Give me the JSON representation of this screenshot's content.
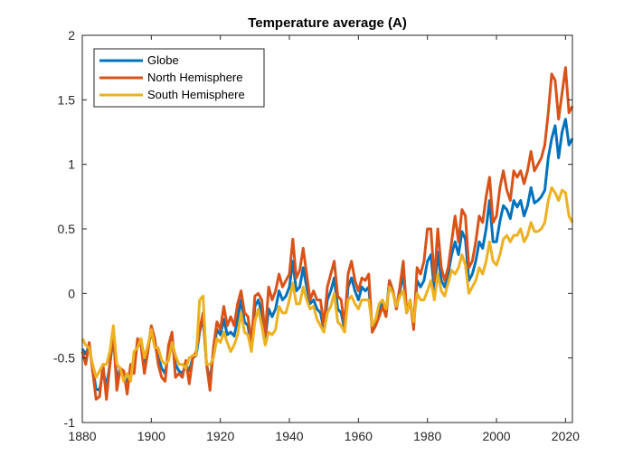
{
  "chart_data": {
    "type": "line",
    "title": "Temperature average (A)",
    "xlabel": "",
    "ylabel": "",
    "xlim": [
      1880,
      2022
    ],
    "ylim": [
      -1,
      2
    ],
    "xticks": [
      1880,
      1900,
      1920,
      1940,
      1960,
      1980,
      2000,
      2020
    ],
    "yticks": [
      -1,
      -0.5,
      0,
      0.5,
      1,
      1.5,
      2
    ],
    "ytick_labels": [
      "-1",
      "-0.5",
      "0",
      "0.5",
      "1",
      "1.5",
      "2"
    ],
    "legend_position": "top-left",
    "colors": {
      "globe": "#0072BD",
      "north": "#D95319",
      "south": "#EDB120",
      "axis": "#262626"
    },
    "x": [
      1880,
      1881,
      1882,
      1883,
      1884,
      1885,
      1886,
      1887,
      1888,
      1889,
      1890,
      1891,
      1892,
      1893,
      1894,
      1895,
      1896,
      1897,
      1898,
      1899,
      1900,
      1901,
      1902,
      1903,
      1904,
      1905,
      1906,
      1907,
      1908,
      1909,
      1910,
      1911,
      1912,
      1913,
      1914,
      1915,
      1916,
      1917,
      1918,
      1919,
      1920,
      1921,
      1922,
      1923,
      1924,
      1925,
      1926,
      1927,
      1928,
      1929,
      1930,
      1931,
      1932,
      1933,
      1934,
      1935,
      1936,
      1937,
      1938,
      1939,
      1940,
      1941,
      1942,
      1943,
      1944,
      1945,
      1946,
      1947,
      1948,
      1949,
      1950,
      1951,
      1952,
      1953,
      1954,
      1955,
      1956,
      1957,
      1958,
      1959,
      1960,
      1961,
      1962,
      1963,
      1964,
      1965,
      1966,
      1967,
      1968,
      1969,
      1970,
      1971,
      1972,
      1973,
      1974,
      1975,
      1976,
      1977,
      1978,
      1979,
      1980,
      1981,
      1982,
      1983,
      1984,
      1985,
      1986,
      1987,
      1988,
      1989,
      1990,
      1991,
      1992,
      1993,
      1994,
      1995,
      1996,
      1997,
      1998,
      1999,
      2000,
      2001,
      2002,
      2003,
      2004,
      2005,
      2006,
      2007,
      2008,
      2009,
      2010,
      2011,
      2012,
      2013,
      2014,
      2015,
      2016,
      2017,
      2018,
      2019,
      2020,
      2021,
      2022
    ],
    "series": [
      {
        "name": "Globe",
        "key": "globe",
        "values": [
          -0.43,
          -0.47,
          -0.4,
          -0.58,
          -0.74,
          -0.75,
          -0.6,
          -0.72,
          -0.55,
          -0.33,
          -0.67,
          -0.58,
          -0.64,
          -0.68,
          -0.61,
          -0.54,
          -0.4,
          -0.38,
          -0.57,
          -0.42,
          -0.3,
          -0.4,
          -0.49,
          -0.58,
          -0.62,
          -0.46,
          -0.35,
          -0.55,
          -0.6,
          -0.62,
          -0.55,
          -0.6,
          -0.5,
          -0.48,
          -0.3,
          -0.18,
          -0.55,
          -0.68,
          -0.45,
          -0.28,
          -0.32,
          -0.2,
          -0.32,
          -0.3,
          -0.33,
          -0.2,
          -0.05,
          -0.22,
          -0.25,
          -0.42,
          -0.1,
          -0.05,
          -0.15,
          -0.35,
          -0.12,
          -0.18,
          -0.12,
          0.02,
          -0.05,
          -0.02,
          0.05,
          0.25,
          0.02,
          0.05,
          0.2,
          0.05,
          -0.08,
          -0.05,
          -0.12,
          -0.15,
          -0.28,
          -0.05,
          0.02,
          0.12,
          -0.12,
          -0.15,
          -0.28,
          0.05,
          0.12,
          0.02,
          -0.05,
          0.05,
          0.02,
          0.05,
          -0.28,
          -0.22,
          -0.12,
          -0.08,
          -0.15,
          0.1,
          0.02,
          -0.12,
          0.02,
          0.15,
          -0.15,
          -0.05,
          -0.25,
          0.1,
          0.05,
          0.1,
          0.25,
          0.3,
          0.02,
          0.32,
          0.1,
          0.05,
          0.15,
          0.3,
          0.4,
          0.3,
          0.48,
          0.42,
          0.1,
          0.15,
          0.25,
          0.4,
          0.35,
          0.5,
          0.72,
          0.4,
          0.4,
          0.56,
          0.68,
          0.65,
          0.58,
          0.72,
          0.67,
          0.72,
          0.6,
          0.68,
          0.82,
          0.7,
          0.72,
          0.75,
          0.8,
          1.05,
          1.2,
          1.3,
          1.05,
          1.25,
          1.35,
          1.15,
          1.2
        ]
      },
      {
        "name": "North Hemisphere",
        "key": "north",
        "values": [
          -0.45,
          -0.55,
          -0.38,
          -0.6,
          -0.82,
          -0.8,
          -0.55,
          -0.82,
          -0.55,
          -0.3,
          -0.75,
          -0.58,
          -0.6,
          -0.78,
          -0.55,
          -0.62,
          -0.35,
          -0.4,
          -0.62,
          -0.45,
          -0.25,
          -0.35,
          -0.55,
          -0.65,
          -0.68,
          -0.4,
          -0.3,
          -0.65,
          -0.62,
          -0.65,
          -0.52,
          -0.7,
          -0.5,
          -0.45,
          -0.28,
          -0.15,
          -0.55,
          -0.75,
          -0.42,
          -0.22,
          -0.28,
          -0.1,
          -0.25,
          -0.18,
          -0.25,
          -0.08,
          0.02,
          -0.15,
          -0.18,
          -0.38,
          -0.02,
          0.0,
          -0.05,
          -0.32,
          0.05,
          -0.05,
          0.02,
          0.15,
          0.05,
          0.1,
          0.15,
          0.42,
          0.12,
          0.18,
          0.35,
          0.15,
          -0.05,
          0.02,
          -0.05,
          -0.05,
          -0.25,
          0.05,
          0.15,
          0.25,
          -0.02,
          -0.05,
          -0.25,
          0.15,
          0.25,
          0.1,
          0.02,
          0.12,
          0.1,
          0.15,
          -0.3,
          -0.25,
          -0.18,
          -0.1,
          -0.18,
          0.1,
          0.02,
          -0.12,
          0.05,
          0.25,
          -0.15,
          -0.05,
          -0.28,
          0.2,
          0.15,
          0.25,
          0.5,
          0.5,
          0.1,
          0.5,
          0.2,
          0.1,
          0.2,
          0.4,
          0.6,
          0.4,
          0.65,
          0.6,
          0.2,
          0.25,
          0.4,
          0.6,
          0.55,
          0.75,
          0.9,
          0.55,
          0.6,
          0.82,
          0.95,
          0.8,
          0.72,
          0.95,
          0.9,
          0.95,
          0.85,
          0.95,
          1.1,
          0.95,
          1.0,
          1.05,
          1.15,
          1.4,
          1.7,
          1.65,
          1.35,
          1.55,
          1.75,
          1.4,
          1.45
        ]
      },
      {
        "name": "South Hemisphere",
        "key": "south",
        "values": [
          -0.35,
          -0.4,
          -0.42,
          -0.55,
          -0.65,
          -0.6,
          -0.55,
          -0.55,
          -0.45,
          -0.25,
          -0.55,
          -0.58,
          -0.68,
          -0.62,
          -0.68,
          -0.45,
          -0.42,
          -0.35,
          -0.5,
          -0.4,
          -0.28,
          -0.42,
          -0.42,
          -0.52,
          -0.55,
          -0.52,
          -0.38,
          -0.48,
          -0.55,
          -0.55,
          -0.58,
          -0.5,
          -0.48,
          -0.48,
          -0.05,
          -0.02,
          -0.55,
          -0.55,
          -0.5,
          -0.35,
          -0.38,
          -0.3,
          -0.38,
          -0.45,
          -0.4,
          -0.32,
          -0.15,
          -0.3,
          -0.32,
          -0.45,
          -0.22,
          -0.12,
          -0.25,
          -0.4,
          -0.3,
          -0.32,
          -0.28,
          -0.1,
          -0.15,
          -0.15,
          -0.05,
          0.08,
          -0.08,
          -0.08,
          0.05,
          -0.05,
          -0.12,
          -0.1,
          -0.2,
          -0.25,
          -0.3,
          -0.15,
          -0.1,
          0.0,
          -0.22,
          -0.25,
          -0.3,
          -0.05,
          -0.02,
          -0.08,
          -0.12,
          -0.05,
          -0.05,
          -0.05,
          -0.25,
          -0.2,
          -0.08,
          -0.05,
          -0.12,
          0.05,
          0.0,
          -0.1,
          -0.02,
          0.02,
          -0.15,
          -0.05,
          -0.22,
          0.0,
          -0.05,
          -0.05,
          0.02,
          0.1,
          -0.05,
          0.15,
          0.02,
          -0.02,
          0.08,
          0.18,
          0.15,
          0.2,
          0.3,
          0.22,
          0.0,
          0.05,
          0.1,
          0.2,
          0.15,
          0.25,
          0.4,
          0.25,
          0.22,
          0.3,
          0.42,
          0.45,
          0.4,
          0.45,
          0.45,
          0.5,
          0.4,
          0.45,
          0.55,
          0.48,
          0.48,
          0.5,
          0.55,
          0.72,
          0.82,
          0.78,
          0.72,
          0.8,
          0.78,
          0.6,
          0.55
        ]
      }
    ]
  }
}
